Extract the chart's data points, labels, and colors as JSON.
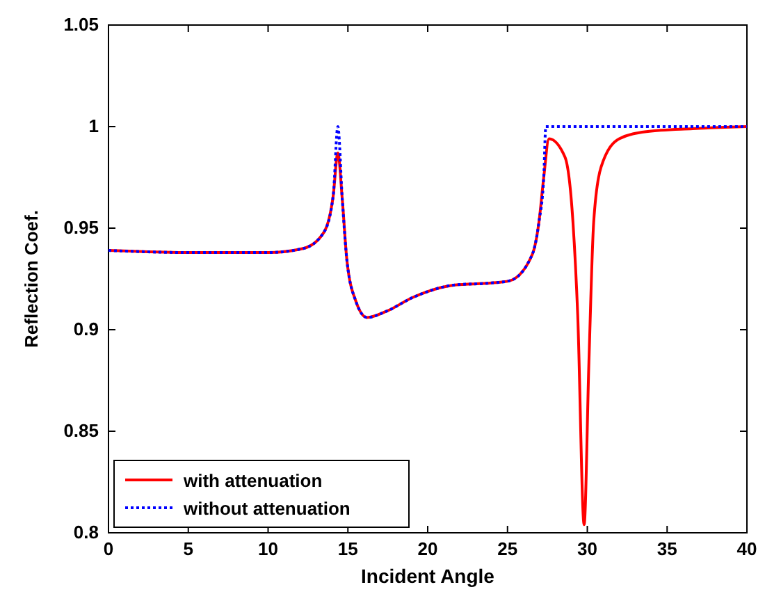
{
  "chart_data": {
    "type": "line",
    "xlabel": "Incident Angle",
    "ylabel": "Reflection Coef.",
    "xlim": [
      0,
      40
    ],
    "ylim": [
      0.8,
      1.05
    ],
    "xticks": [
      0,
      5,
      10,
      15,
      20,
      25,
      30,
      35,
      40
    ],
    "yticks": [
      0.8,
      0.85,
      0.9,
      0.95,
      {
        "value": 1,
        "label": "1"
      },
      1.05
    ],
    "grid": false,
    "legend": "bottom left",
    "series": [
      {
        "name": "with attenuation",
        "color": "#ff0000",
        "line_style": "solid",
        "x": [
          0,
          5,
          10,
          12.2,
          13.5,
          14.08,
          14.37,
          14.65,
          14.94,
          15.5,
          16.2,
          17.4,
          19.1,
          21.7,
          24,
          25.1,
          26.55,
          26.97,
          27.27,
          27.6,
          28.6,
          29.1,
          29.4,
          29.8,
          30.1,
          30.4,
          30.86,
          32,
          33.7,
          36.6,
          40
        ],
        "values": [
          0.939,
          0.938,
          0.938,
          0.94,
          0.948,
          0.966,
          0.987,
          0.964,
          0.934,
          0.914,
          0.906,
          0.909,
          0.916,
          0.922,
          0.923,
          0.924,
          0.937,
          0.953,
          0.975,
          0.994,
          0.985,
          0.953,
          0.907,
          0.804,
          0.884,
          0.953,
          0.98,
          0.994,
          0.9975,
          0.999,
          1.0
        ]
      },
      {
        "name": "without attenuation",
        "color": "#0000ff",
        "line_style": "dotted",
        "x": [
          0,
          5,
          10,
          12.2,
          13.5,
          14.08,
          14.37,
          14.65,
          14.94,
          15.5,
          16.2,
          17.4,
          19.1,
          21.7,
          24,
          25.1,
          26.55,
          26.97,
          27.27,
          27.4,
          30,
          35,
          40
        ],
        "values": [
          0.939,
          0.938,
          0.938,
          0.94,
          0.948,
          0.966,
          1.0,
          0.964,
          0.934,
          0.914,
          0.906,
          0.909,
          0.916,
          0.922,
          0.923,
          0.924,
          0.937,
          0.953,
          0.975,
          1.0,
          1.0,
          1.0,
          1.0
        ]
      }
    ]
  }
}
